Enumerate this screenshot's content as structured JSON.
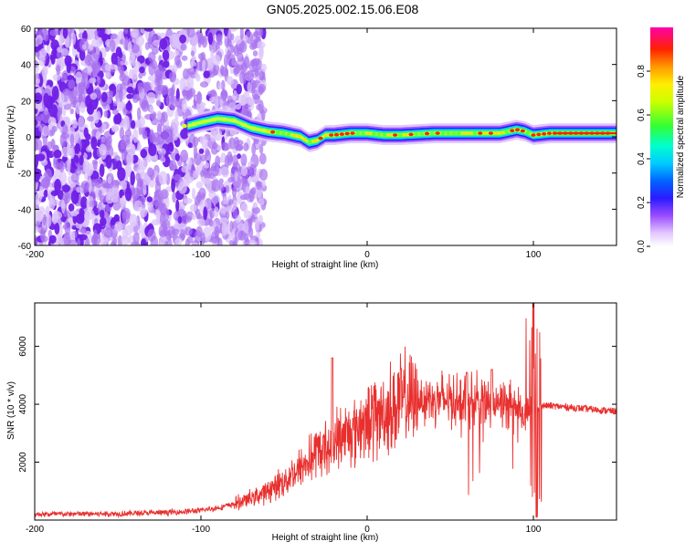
{
  "title": "GN05.2025.002.15.06.E08",
  "chart_data": [
    {
      "type": "heatmap",
      "xlabel": "Height of straight line (km)",
      "ylabel": "Frequency (Hz)",
      "xlim": [
        -200,
        150
      ],
      "ylim": [
        -60,
        60
      ],
      "x_ticks": [
        -200,
        -100,
        0,
        100
      ],
      "y_ticks": [
        -60,
        -40,
        -20,
        0,
        20,
        40,
        60
      ],
      "colorbar": {
        "label": "Normalized spectral amplitude",
        "range": [
          0,
          1
        ],
        "ticks": [
          "0.0",
          "0.2",
          "0.4",
          "0.6",
          "0.8"
        ]
      },
      "ridge": {
        "x": [
          -108,
          -100,
          -90,
          -80,
          -70,
          -60,
          -50,
          -40,
          -35,
          -30,
          -25,
          -20,
          -10,
          0,
          10,
          20,
          40,
          60,
          80,
          90,
          95,
          100,
          110,
          120,
          150
        ],
        "y": [
          6,
          8,
          10,
          9,
          5,
          3,
          2,
          0,
          -3,
          -2,
          1,
          1,
          2,
          2,
          1,
          1,
          2,
          2,
          2,
          4,
          3,
          1,
          2,
          2,
          2
        ]
      },
      "noise_extent_x": [
        -200,
        -70
      ]
    },
    {
      "type": "line",
      "xlabel": "Height of straight line (km)",
      "ylabel": "SNR (10 * v/v)",
      "xlim": [
        -200,
        150
      ],
      "ylim": [
        0,
        7500
      ],
      "x_ticks": [
        -200,
        -100,
        0,
        100
      ],
      "y_ticks": [
        2000,
        4000,
        6000
      ],
      "series": [
        {
          "color": "#e8302e",
          "envelope_x": [
            -200,
            -150,
            -120,
            -100,
            -90,
            -80,
            -70,
            -60,
            -50,
            -40,
            -30,
            -20,
            -10,
            0,
            10,
            20,
            30,
            40,
            50,
            60,
            70,
            80,
            90,
            95,
            100,
            105,
            110,
            120,
            130,
            140,
            150
          ],
          "envelope_y": [
            200,
            220,
            260,
            330,
            420,
            550,
            750,
            1000,
            1350,
            1800,
            2300,
            2700,
            3100,
            3400,
            3750,
            4050,
            4200,
            4200,
            4150,
            4150,
            4150,
            4050,
            3850,
            3600,
            3700,
            3950,
            3950,
            3900,
            3850,
            3800,
            3750
          ],
          "spikes": [
            {
              "x": -21,
              "y": 5600
            },
            {
              "x": 100,
              "y": 7500
            },
            {
              "x": 102,
              "y": 100
            },
            {
              "x": 75,
              "y": 5200
            },
            {
              "x": 60,
              "y": 5100
            }
          ]
        }
      ]
    }
  ]
}
